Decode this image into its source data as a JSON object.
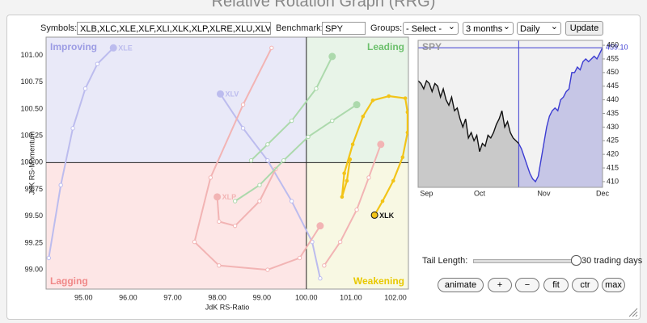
{
  "header": {
    "title": "Relative Rotation Graph (RRG)"
  },
  "controls": {
    "symbols_label": "Symbols:",
    "symbols": "XLB,XLC,XLE,XLF,XLI,XLK,XLP,XLRE,XLU,XLV,XLY",
    "benchmark_label": "Benchmark:",
    "benchmark": "SPY",
    "groups_label": "Groups:",
    "groups": "- Select -",
    "period": "3 months",
    "frequency": "Daily",
    "update": "Update",
    "tail_length_label": "Tail Length:",
    "tail_length": 30,
    "tail_length_unit": "trading days",
    "buttons": [
      "animate",
      "+",
      "−",
      "fit",
      "ctr",
      "max"
    ]
  },
  "chart_data": [
    {
      "type": "rrg",
      "x_label": "JdK RS-Ratio",
      "y_label": "JdK RS-Momentum",
      "xlim": [
        94.16,
        102.29
      ],
      "ylim": [
        98.82,
        101.17
      ],
      "xticks": [
        {
          "value": 95,
          "label": "95.00"
        },
        {
          "value": 96,
          "label": "96.00"
        },
        {
          "value": 97,
          "label": "97.00"
        },
        {
          "value": 98,
          "label": "98.00"
        },
        {
          "value": 99,
          "label": "99.00"
        },
        {
          "value": 100,
          "label": "100.00"
        },
        {
          "value": 101,
          "label": "101.00"
        },
        {
          "value": 102,
          "label": "102.00"
        }
      ],
      "yticks": [
        {
          "value": 99,
          "label": "99.00"
        },
        {
          "value": 99.25,
          "label": "99.25"
        },
        {
          "value": 99.5,
          "label": "99.50"
        },
        {
          "value": 99.75,
          "label": "99.75"
        },
        {
          "value": 100,
          "label": "100.00"
        },
        {
          "value": 100.25,
          "label": "100.25"
        },
        {
          "value": 100.5,
          "label": "100.50"
        },
        {
          "value": 100.75,
          "label": "100.75"
        },
        {
          "value": 101,
          "label": "101.00"
        }
      ],
      "center": {
        "x": 100,
        "y": 100
      },
      "quadrants": [
        {
          "label": "Improving",
          "color": "#9c9ce4",
          "fill": "#e9e9f8"
        },
        {
          "label": "Leading",
          "color": "#6cc06c",
          "fill": "#e8f4e8"
        },
        {
          "label": "Lagging",
          "color": "#f08888",
          "fill": "#fde6e6"
        },
        {
          "label": "Weakening",
          "color": "#e8c800",
          "fill": "#f8f8e3"
        }
      ],
      "series": [
        {
          "name": "XLE",
          "color": "#bcbcee",
          "x": [
            94.22,
            94.49,
            94.76,
            95.04,
            95.31,
            95.67
          ],
          "values": [
            99.11,
            99.79,
            100.32,
            100.69,
            100.92,
            101.07
          ]
        },
        {
          "name": "XLV",
          "color": "#bcbcee",
          "x": [
            100.31,
            100.13,
            99.67,
            99.13,
            98.58,
            98.07
          ],
          "values": [
            98.92,
            99.26,
            99.64,
            100.02,
            100.32,
            100.64
          ]
        },
        {
          "name": "XLP",
          "color": "#f2b4b4",
          "x": [
            99.31,
            98.95,
            98.4,
            98.04,
            98.0
          ],
          "values": [
            99.94,
            99.64,
            99.41,
            99.45,
            99.68
          ]
        },
        {
          "color": "#f2b4b4",
          "x": [
            99.22,
            98.58,
            97.85,
            97.49,
            98.04,
            99.13,
            99.85,
            100.31
          ],
          "values": [
            101.07,
            100.54,
            99.86,
            99.26,
            99.04,
            99.0,
            99.11,
            99.41
          ]
        },
        {
          "color": "#acd9ac",
          "x": [
            98.76,
            99.13,
            99.67,
            100.22,
            100.58
          ],
          "values": [
            100.02,
            100.17,
            100.39,
            100.69,
            100.99
          ]
        },
        {
          "color": "#acd9ac",
          "x": [
            98.4,
            98.95,
            99.49,
            100.04,
            100.58,
            101.13
          ],
          "values": [
            99.64,
            99.79,
            100.02,
            100.24,
            100.39,
            100.54
          ]
        },
        {
          "color": "#f2b4b4",
          "x": [
            100.4,
            100.76,
            101.13,
            101.4,
            101.67
          ],
          "values": [
            99.04,
            99.26,
            99.56,
            99.86,
            100.17
          ]
        },
        {
          "name": "XLK",
          "color": "#f2c418",
          "highlighted": true,
          "x": [
            100.98,
            100.91,
            100.8,
            100.85,
            101.04,
            101.27,
            101.49,
            101.85,
            102.22,
            102.27,
            102.27,
            102.16,
            101.95,
            101.71,
            101.53
          ],
          "values": [
            100.03,
            99.83,
            99.68,
            99.9,
            100.17,
            100.43,
            100.58,
            100.62,
            100.6,
            100.47,
            100.28,
            100.05,
            99.83,
            99.64,
            99.51
          ]
        }
      ]
    },
    {
      "type": "line",
      "title": "SPY",
      "xlim": [
        0,
        66
      ],
      "ylim": [
        407.9,
        461.8
      ],
      "xticks": [
        {
          "value": 3,
          "label": "Sep"
        },
        {
          "value": 22,
          "label": "Oct"
        },
        {
          "value": 45,
          "label": "Nov"
        },
        {
          "value": 66,
          "label": "Dec"
        }
      ],
      "yticks": [
        410,
        415,
        420,
        425,
        430,
        435,
        440,
        445,
        450,
        455,
        460
      ],
      "colors": {
        "history": "#111111",
        "tail": "#3c3cd2",
        "history_fill": "#c9c9c9",
        "tail_fill": "#c6c6e6"
      },
      "series": [
        {
          "name": "SPY",
          "values": [
            447,
            446,
            444,
            447,
            446,
            443,
            446,
            445,
            441,
            444,
            440,
            438,
            441,
            436,
            437,
            433,
            430,
            433,
            426,
            428,
            425,
            427,
            421,
            424,
            423,
            427,
            426,
            428,
            431,
            433,
            436,
            430,
            432,
            428,
            426,
            425,
            424,
            422,
            419,
            416,
            413,
            411,
            410,
            412,
            418,
            424,
            430,
            434,
            436,
            437,
            436,
            440,
            441,
            443,
            444,
            450,
            450,
            452,
            451,
            454,
            455,
            454,
            455,
            456,
            455,
            457,
            459.1
          ],
          "value_labels": [
            null,
            null,
            null,
            null,
            null,
            null,
            null,
            null,
            null,
            null,
            null,
            null,
            null,
            null,
            null,
            null,
            null,
            null,
            null,
            null,
            null,
            null,
            null,
            null,
            null,
            null,
            null,
            null,
            null,
            null,
            null,
            null,
            null,
            null,
            null,
            null,
            null,
            null,
            null,
            null,
            null,
            null,
            null,
            null,
            null,
            null,
            null,
            null,
            null,
            null,
            null,
            null,
            null,
            null,
            null,
            null,
            null,
            null,
            null,
            null,
            null,
            null,
            null,
            null,
            null,
            null,
            "459.10"
          ]
        }
      ]
    }
  ]
}
